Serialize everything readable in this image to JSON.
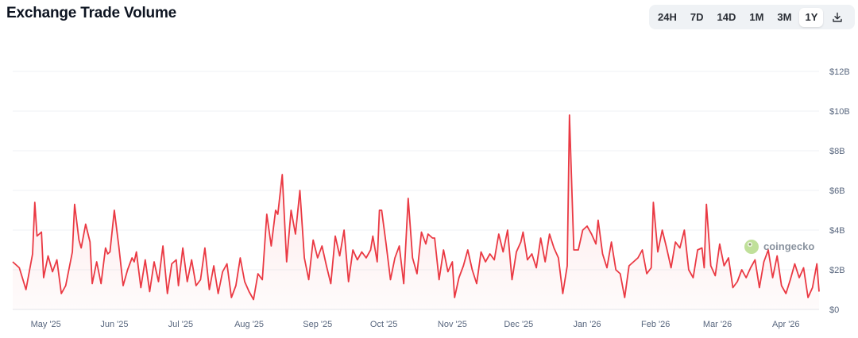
{
  "title": "Exchange Trade Volume",
  "range_buttons": [
    {
      "label": "24H",
      "active": false
    },
    {
      "label": "7D",
      "active": false
    },
    {
      "label": "14D",
      "active": false
    },
    {
      "label": "1M",
      "active": false
    },
    {
      "label": "3M",
      "active": false
    },
    {
      "label": "1Y",
      "active": true
    }
  ],
  "download_icon": "download-icon",
  "watermark": "coingecko",
  "colors": {
    "line": "#ea3943",
    "fill": "#ea3943",
    "grid": "#eff2f5",
    "text": "#58667e"
  },
  "chart_data": {
    "type": "area",
    "title": "Exchange Trade Volume",
    "ylim": [
      0,
      12
    ],
    "y_unit": "$B",
    "y_ticks": [
      "$0",
      "$2B",
      "$4B",
      "$6B",
      "$8B",
      "$10B",
      "$12B"
    ],
    "x_ticks": [
      "May '25",
      "Jun '25",
      "Jul '25",
      "Aug '25",
      "Sep '25",
      "Oct '25",
      "Nov '25",
      "Dec '25",
      "Jan '26",
      "Feb '26",
      "Mar '26",
      "Apr '26"
    ],
    "x_tick_days": [
      15,
      46,
      76,
      107,
      138,
      168,
      199,
      229,
      260,
      291,
      319,
      350
    ],
    "grid": true,
    "series": [
      {
        "values": [
          [
            0,
            2.4
          ],
          [
            3,
            2.1
          ],
          [
            6,
            1.0
          ],
          [
            9,
            2.8
          ],
          [
            10,
            5.4
          ],
          [
            11,
            3.7
          ],
          [
            13,
            3.9
          ],
          [
            14,
            1.6
          ],
          [
            16,
            2.7
          ],
          [
            18,
            1.9
          ],
          [
            20,
            2.5
          ],
          [
            22,
            0.8
          ],
          [
            24,
            1.2
          ],
          [
            27,
            2.9
          ],
          [
            28,
            5.3
          ],
          [
            30,
            3.5
          ],
          [
            31,
            3.1
          ],
          [
            33,
            4.3
          ],
          [
            35,
            3.4
          ],
          [
            36,
            1.3
          ],
          [
            38,
            2.4
          ],
          [
            40,
            1.3
          ],
          [
            42,
            3.1
          ],
          [
            43,
            2.8
          ],
          [
            44,
            2.9
          ],
          [
            46,
            5.0
          ],
          [
            48,
            3.2
          ],
          [
            50,
            1.2
          ],
          [
            52,
            2.0
          ],
          [
            54,
            2.6
          ],
          [
            55,
            2.4
          ],
          [
            56,
            2.9
          ],
          [
            58,
            1.1
          ],
          [
            60,
            2.5
          ],
          [
            62,
            0.9
          ],
          [
            64,
            2.4
          ],
          [
            66,
            1.4
          ],
          [
            68,
            3.2
          ],
          [
            70,
            0.8
          ],
          [
            72,
            2.3
          ],
          [
            74,
            2.5
          ],
          [
            75,
            1.2
          ],
          [
            77,
            3.1
          ],
          [
            79,
            1.4
          ],
          [
            81,
            2.5
          ],
          [
            83,
            1.2
          ],
          [
            85,
            1.5
          ],
          [
            87,
            3.1
          ],
          [
            89,
            1.0
          ],
          [
            91,
            2.2
          ],
          [
            93,
            0.8
          ],
          [
            95,
            1.9
          ],
          [
            97,
            2.3
          ],
          [
            99,
            0.6
          ],
          [
            101,
            1.2
          ],
          [
            103,
            2.6
          ],
          [
            105,
            1.4
          ],
          [
            107,
            0.9
          ],
          [
            109,
            0.5
          ],
          [
            111,
            1.8
          ],
          [
            113,
            1.5
          ],
          [
            115,
            4.8
          ],
          [
            117,
            3.2
          ],
          [
            119,
            5.0
          ],
          [
            120,
            4.8
          ],
          [
            122,
            6.8
          ],
          [
            124,
            2.4
          ],
          [
            126,
            5.0
          ],
          [
            128,
            3.8
          ],
          [
            130,
            6.0
          ],
          [
            132,
            2.6
          ],
          [
            134,
            1.5
          ],
          [
            136,
            3.5
          ],
          [
            138,
            2.6
          ],
          [
            140,
            3.2
          ],
          [
            142,
            2.2
          ],
          [
            144,
            1.3
          ],
          [
            146,
            3.7
          ],
          [
            148,
            2.7
          ],
          [
            150,
            4.0
          ],
          [
            152,
            1.4
          ],
          [
            154,
            3.0
          ],
          [
            156,
            2.5
          ],
          [
            158,
            2.9
          ],
          [
            160,
            2.6
          ],
          [
            162,
            3.0
          ],
          [
            163,
            3.7
          ],
          [
            165,
            2.4
          ],
          [
            166,
            5.0
          ],
          [
            167,
            5.0
          ],
          [
            169,
            3.3
          ],
          [
            171,
            1.5
          ],
          [
            173,
            2.6
          ],
          [
            175,
            3.2
          ],
          [
            177,
            1.3
          ],
          [
            179,
            5.6
          ],
          [
            181,
            2.6
          ],
          [
            183,
            1.8
          ],
          [
            185,
            3.9
          ],
          [
            187,
            3.3
          ],
          [
            188,
            3.8
          ],
          [
            190,
            3.6
          ],
          [
            191,
            3.6
          ],
          [
            193,
            1.5
          ],
          [
            195,
            3.0
          ],
          [
            197,
            1.9
          ],
          [
            199,
            2.4
          ],
          [
            200,
            0.6
          ],
          [
            202,
            1.6
          ],
          [
            204,
            2.2
          ],
          [
            206,
            3.0
          ],
          [
            208,
            2.0
          ],
          [
            210,
            1.3
          ],
          [
            212,
            2.9
          ],
          [
            214,
            2.4
          ],
          [
            216,
            2.8
          ],
          [
            218,
            2.5
          ],
          [
            220,
            3.8
          ],
          [
            222,
            2.9
          ],
          [
            224,
            4.0
          ],
          [
            226,
            1.5
          ],
          [
            228,
            2.9
          ],
          [
            230,
            3.4
          ],
          [
            231,
            3.9
          ],
          [
            233,
            2.5
          ],
          [
            235,
            2.8
          ],
          [
            237,
            2.1
          ],
          [
            239,
            3.6
          ],
          [
            241,
            2.4
          ],
          [
            243,
            3.8
          ],
          [
            245,
            3.1
          ],
          [
            247,
            2.6
          ],
          [
            249,
            0.8
          ],
          [
            251,
            2.2
          ],
          [
            252,
            9.8
          ],
          [
            254,
            3.0
          ],
          [
            256,
            3.0
          ],
          [
            258,
            4.0
          ],
          [
            260,
            4.2
          ],
          [
            262,
            3.8
          ],
          [
            264,
            3.3
          ],
          [
            265,
            4.5
          ],
          [
            267,
            2.8
          ],
          [
            269,
            2.1
          ],
          [
            271,
            3.4
          ],
          [
            273,
            2.0
          ],
          [
            275,
            1.8
          ],
          [
            277,
            0.6
          ],
          [
            279,
            2.2
          ],
          [
            281,
            2.4
          ],
          [
            283,
            2.6
          ],
          [
            285,
            3.0
          ],
          [
            287,
            1.8
          ],
          [
            289,
            2.1
          ],
          [
            290,
            5.4
          ],
          [
            292,
            2.9
          ],
          [
            294,
            4.0
          ],
          [
            296,
            3.1
          ],
          [
            298,
            2.1
          ],
          [
            300,
            3.4
          ],
          [
            302,
            3.1
          ],
          [
            304,
            4.0
          ],
          [
            306,
            2.0
          ],
          [
            308,
            1.6
          ],
          [
            310,
            3.0
          ],
          [
            312,
            3.1
          ],
          [
            313,
            2.1
          ],
          [
            314,
            5.3
          ],
          [
            316,
            2.2
          ],
          [
            318,
            1.7
          ],
          [
            320,
            3.3
          ],
          [
            322,
            2.2
          ],
          [
            324,
            2.6
          ],
          [
            326,
            1.1
          ],
          [
            328,
            1.4
          ],
          [
            330,
            2.0
          ],
          [
            332,
            1.6
          ],
          [
            334,
            2.1
          ],
          [
            336,
            2.5
          ],
          [
            338,
            1.1
          ],
          [
            340,
            2.4
          ],
          [
            342,
            3.0
          ],
          [
            344,
            1.6
          ],
          [
            346,
            2.7
          ],
          [
            348,
            1.2
          ],
          [
            350,
            0.8
          ],
          [
            352,
            1.5
          ],
          [
            354,
            2.3
          ],
          [
            356,
            1.6
          ],
          [
            358,
            2.1
          ],
          [
            360,
            0.6
          ],
          [
            362,
            1.1
          ],
          [
            364,
            2.3
          ],
          [
            365,
            0.9
          ]
        ]
      }
    ]
  }
}
